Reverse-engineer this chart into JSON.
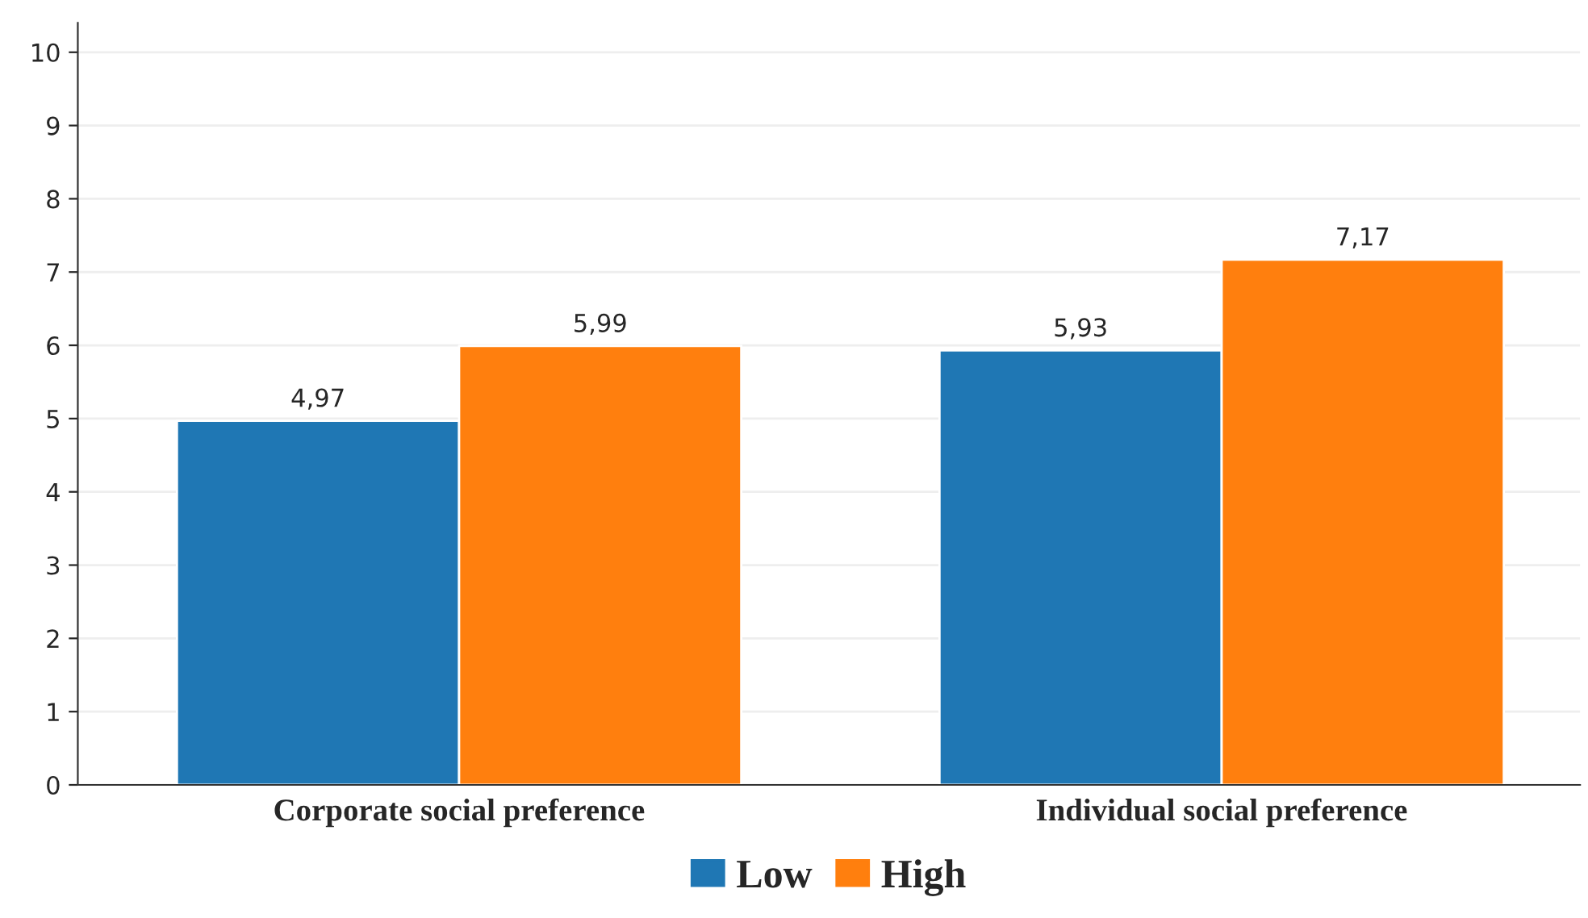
{
  "chart_data": {
    "type": "bar",
    "categories": [
      "Corporate social preference",
      "Individual social preference"
    ],
    "series": [
      {
        "name": "Low",
        "color": "#1f77b4",
        "values": [
          4.97,
          5.93
        ],
        "value_labels": [
          "4,97",
          "5,93"
        ]
      },
      {
        "name": "High",
        "color": "#ff7f0e",
        "values": [
          5.99,
          7.17
        ],
        "value_labels": [
          "5,99",
          "7,17"
        ]
      }
    ],
    "ylim": [
      0,
      10.4
    ],
    "yticks": [
      0,
      1,
      2,
      3,
      4,
      5,
      6,
      7,
      8,
      9,
      10
    ],
    "grid": "y",
    "legend": "bottom"
  }
}
